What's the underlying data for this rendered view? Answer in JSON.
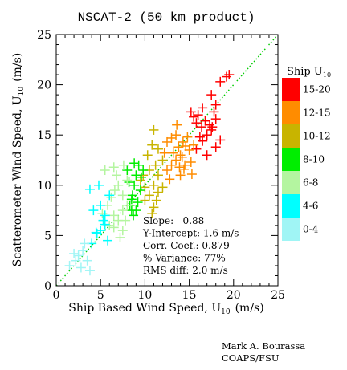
{
  "chart_data": {
    "type": "scatter",
    "title": "NSCAT-2 (50 km product)",
    "xlabel": "Ship Based Wind Speed, U",
    "xlabel_sub": "10",
    "xlabel_unit": "(m/s)",
    "ylabel": "Scatterometer Wind Speed, U",
    "ylabel_sub": "10",
    "ylabel_unit": "(m/s)",
    "xlim": [
      0,
      25
    ],
    "ylim": [
      0,
      25
    ],
    "xticks": [
      "0",
      "5",
      "10",
      "15",
      "20",
      "25"
    ],
    "yticks": [
      "0",
      "5",
      "10",
      "15",
      "20",
      "25"
    ],
    "grid": false,
    "reference_line": "1:1 dotted green",
    "legend": {
      "title": "Ship U",
      "title_sub": "10",
      "placement": "right",
      "entries": [
        {
          "label": "15-20",
          "color": "#ff0000"
        },
        {
          "label": "12-15",
          "color": "#ff8c00"
        },
        {
          "label": "10-12",
          "color": "#c8b400"
        },
        {
          "label": "8-10",
          "color": "#00ee00"
        },
        {
          "label": "6-8",
          "color": "#b4f5a0"
        },
        {
          "label": "4-6",
          "color": "#00ffff"
        },
        {
          "label": "0-4",
          "color": "#a0f5f5"
        }
      ]
    },
    "stats": [
      "Slope:   0.88",
      "Y-Intercept: 1.6 m/s",
      "Corr. Coef.: 0.879",
      "% Variance: 77%",
      "RMS diff: 2.0 m/s"
    ],
    "series": [
      {
        "range": "15-20",
        "color": "#ff0000",
        "points": [
          [
            15.2,
            17.3
          ],
          [
            15.5,
            16.8
          ],
          [
            15.8,
            16.2
          ],
          [
            16.0,
            17.0
          ],
          [
            16.4,
            15.8
          ],
          [
            16.8,
            16.4
          ],
          [
            17.0,
            15.0
          ],
          [
            17.3,
            16.0
          ],
          [
            17.5,
            15.5
          ],
          [
            17.8,
            17.3
          ],
          [
            18.0,
            16.6
          ],
          [
            16.2,
            14.8
          ],
          [
            18.5,
            20.3
          ],
          [
            19.2,
            20.8
          ],
          [
            19.5,
            21.0
          ],
          [
            18.0,
            18.0
          ],
          [
            17.5,
            19.0
          ],
          [
            16.5,
            14.4
          ],
          [
            17.0,
            13.0
          ],
          [
            18.0,
            13.8
          ],
          [
            18.5,
            14.5
          ],
          [
            16.5,
            17.7
          ],
          [
            15.8,
            13.6
          ],
          [
            17.6,
            15.8
          ]
        ]
      },
      {
        "range": "12-15",
        "color": "#ff8c00",
        "points": [
          [
            12.5,
            14.3
          ],
          [
            13.0,
            14.7
          ],
          [
            13.5,
            15.0
          ],
          [
            13.2,
            13.2
          ],
          [
            13.8,
            13.8
          ],
          [
            14.3,
            14.3
          ],
          [
            14.8,
            14.8
          ],
          [
            14.0,
            13.0
          ],
          [
            14.5,
            12.0
          ],
          [
            15.0,
            13.5
          ],
          [
            13.5,
            12.5
          ],
          [
            12.5,
            11.5
          ],
          [
            13.0,
            12.0
          ],
          [
            14.0,
            11.0
          ],
          [
            12.8,
            10.6
          ],
          [
            15.2,
            12.3
          ],
          [
            14.4,
            11.6
          ],
          [
            13.6,
            16.0
          ],
          [
            15.5,
            14.0
          ],
          [
            14.6,
            13.9
          ],
          [
            12.2,
            13.2
          ],
          [
            13.9,
            11.8
          ],
          [
            15.3,
            11.1
          ],
          [
            14.2,
            12.8
          ]
        ]
      },
      {
        "range": "10-12",
        "color": "#c8b400",
        "points": [
          [
            10.3,
            13.0
          ],
          [
            10.8,
            14.0
          ],
          [
            11.5,
            13.6
          ],
          [
            11.2,
            12.0
          ],
          [
            11.0,
            10.0
          ],
          [
            10.5,
            9.0
          ],
          [
            10.0,
            8.5
          ],
          [
            11.0,
            7.8
          ],
          [
            11.5,
            11.0
          ],
          [
            12.0,
            12.5
          ],
          [
            12.0,
            9.8
          ],
          [
            9.5,
            10.5
          ],
          [
            10.5,
            11.5
          ],
          [
            11.0,
            15.5
          ],
          [
            11.3,
            8.5
          ],
          [
            10.8,
            7.2
          ],
          [
            10.0,
            9.8
          ],
          [
            11.5,
            9.3
          ],
          [
            9.8,
            11.0
          ]
        ]
      },
      {
        "range": "8-10",
        "color": "#00ee00",
        "points": [
          [
            8.3,
            8.0
          ],
          [
            8.6,
            9.0
          ],
          [
            8.8,
            10.0
          ],
          [
            9.0,
            11.0
          ],
          [
            9.3,
            12.0
          ],
          [
            8.5,
            7.5
          ],
          [
            8.7,
            7.0
          ],
          [
            9.2,
            8.3
          ],
          [
            9.5,
            9.5
          ],
          [
            9.6,
            10.8
          ],
          [
            8.2,
            10.3
          ],
          [
            9.0,
            7.5
          ],
          [
            8.0,
            11.5
          ],
          [
            8.8,
            12.2
          ],
          [
            9.8,
            11.5
          ],
          [
            8.5,
            8.6
          ]
        ]
      },
      {
        "range": "6-8",
        "color": "#b4f5a0",
        "points": [
          [
            6.2,
            8.8
          ],
          [
            6.6,
            9.5
          ],
          [
            7.0,
            10.0
          ],
          [
            7.5,
            9.0
          ],
          [
            8.0,
            8.0
          ],
          [
            7.5,
            7.5
          ],
          [
            6.5,
            7.0
          ],
          [
            7.0,
            6.5
          ],
          [
            6.0,
            6.0
          ],
          [
            7.5,
            5.5
          ],
          [
            7.2,
            4.8
          ],
          [
            6.5,
            5.8
          ],
          [
            7.8,
            6.5
          ],
          [
            8.0,
            10.5
          ],
          [
            6.8,
            11.0
          ],
          [
            5.5,
            11.5
          ],
          [
            6.5,
            11.8
          ],
          [
            7.6,
            12.0
          ],
          [
            5.8,
            8.0
          ],
          [
            5.2,
            7.2
          ]
        ]
      },
      {
        "range": "4-6",
        "color": "#00ffff",
        "points": [
          [
            4.2,
            7.5
          ],
          [
            5.0,
            8.0
          ],
          [
            5.3,
            6.5
          ],
          [
            4.5,
            5.3
          ],
          [
            5.8,
            4.5
          ],
          [
            4.0,
            4.2
          ],
          [
            5.5,
            7.0
          ],
          [
            5.0,
            5.5
          ],
          [
            6.0,
            9.0
          ],
          [
            4.8,
            10.0
          ],
          [
            3.8,
            9.6
          ],
          [
            5.5,
            6.1
          ],
          [
            4.6,
            5.2
          ]
        ]
      },
      {
        "range": "0-4",
        "color": "#a0f5f5",
        "points": [
          [
            1.5,
            2.0
          ],
          [
            2.5,
            3.0
          ],
          [
            3.0,
            3.5
          ],
          [
            3.5,
            2.5
          ],
          [
            2.8,
            1.8
          ],
          [
            2.0,
            3.2
          ],
          [
            3.2,
            4.2
          ],
          [
            3.8,
            1.5
          ],
          [
            2.2,
            2.5
          ]
        ]
      }
    ]
  },
  "credit": {
    "line1": "Mark A. Bourassa",
    "line2": "COAPS/FSU"
  }
}
